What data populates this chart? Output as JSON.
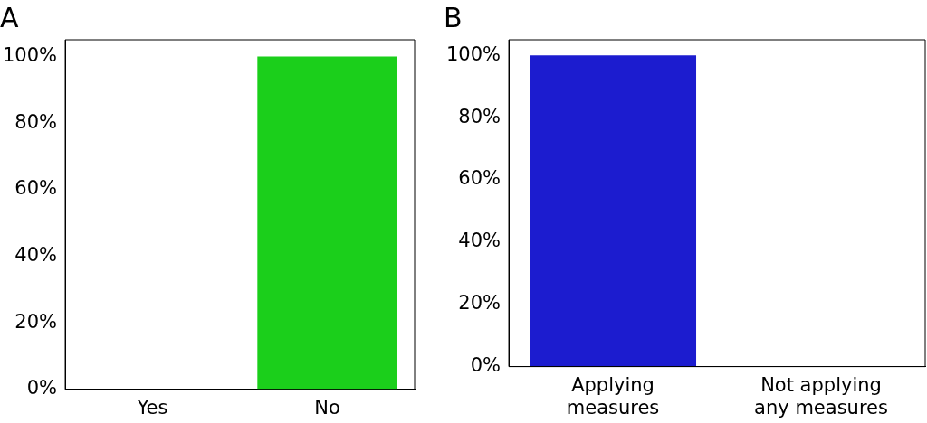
{
  "chart_data": [
    {
      "type": "bar",
      "title": "A",
      "categories": [
        "Yes",
        "No"
      ],
      "values": [
        0,
        100
      ],
      "colors": [
        "#1bcf1b",
        "#1bcf1b"
      ],
      "ylim": [
        0,
        105
      ],
      "yticks": [
        {
          "value": 0,
          "label": "0%"
        },
        {
          "value": 20,
          "label": "20%"
        },
        {
          "value": 40,
          "label": "40%"
        },
        {
          "value": 60,
          "label": "60%"
        },
        {
          "value": 80,
          "label": "80%"
        },
        {
          "value": 100,
          "label": "100%"
        }
      ]
    },
    {
      "type": "bar",
      "title": "B",
      "categories": [
        "Applying\nmeasures",
        "Not applying\nany measures"
      ],
      "values": [
        100,
        0
      ],
      "colors": [
        "#1c1ccf",
        "#1c1ccf"
      ],
      "ylim": [
        0,
        105
      ],
      "yticks": [
        {
          "value": 0,
          "label": "0%"
        },
        {
          "value": 20,
          "label": "20%"
        },
        {
          "value": 40,
          "label": "40%"
        },
        {
          "value": 60,
          "label": "60%"
        },
        {
          "value": 80,
          "label": "80%"
        },
        {
          "value": 100,
          "label": "100%"
        }
      ]
    }
  ]
}
